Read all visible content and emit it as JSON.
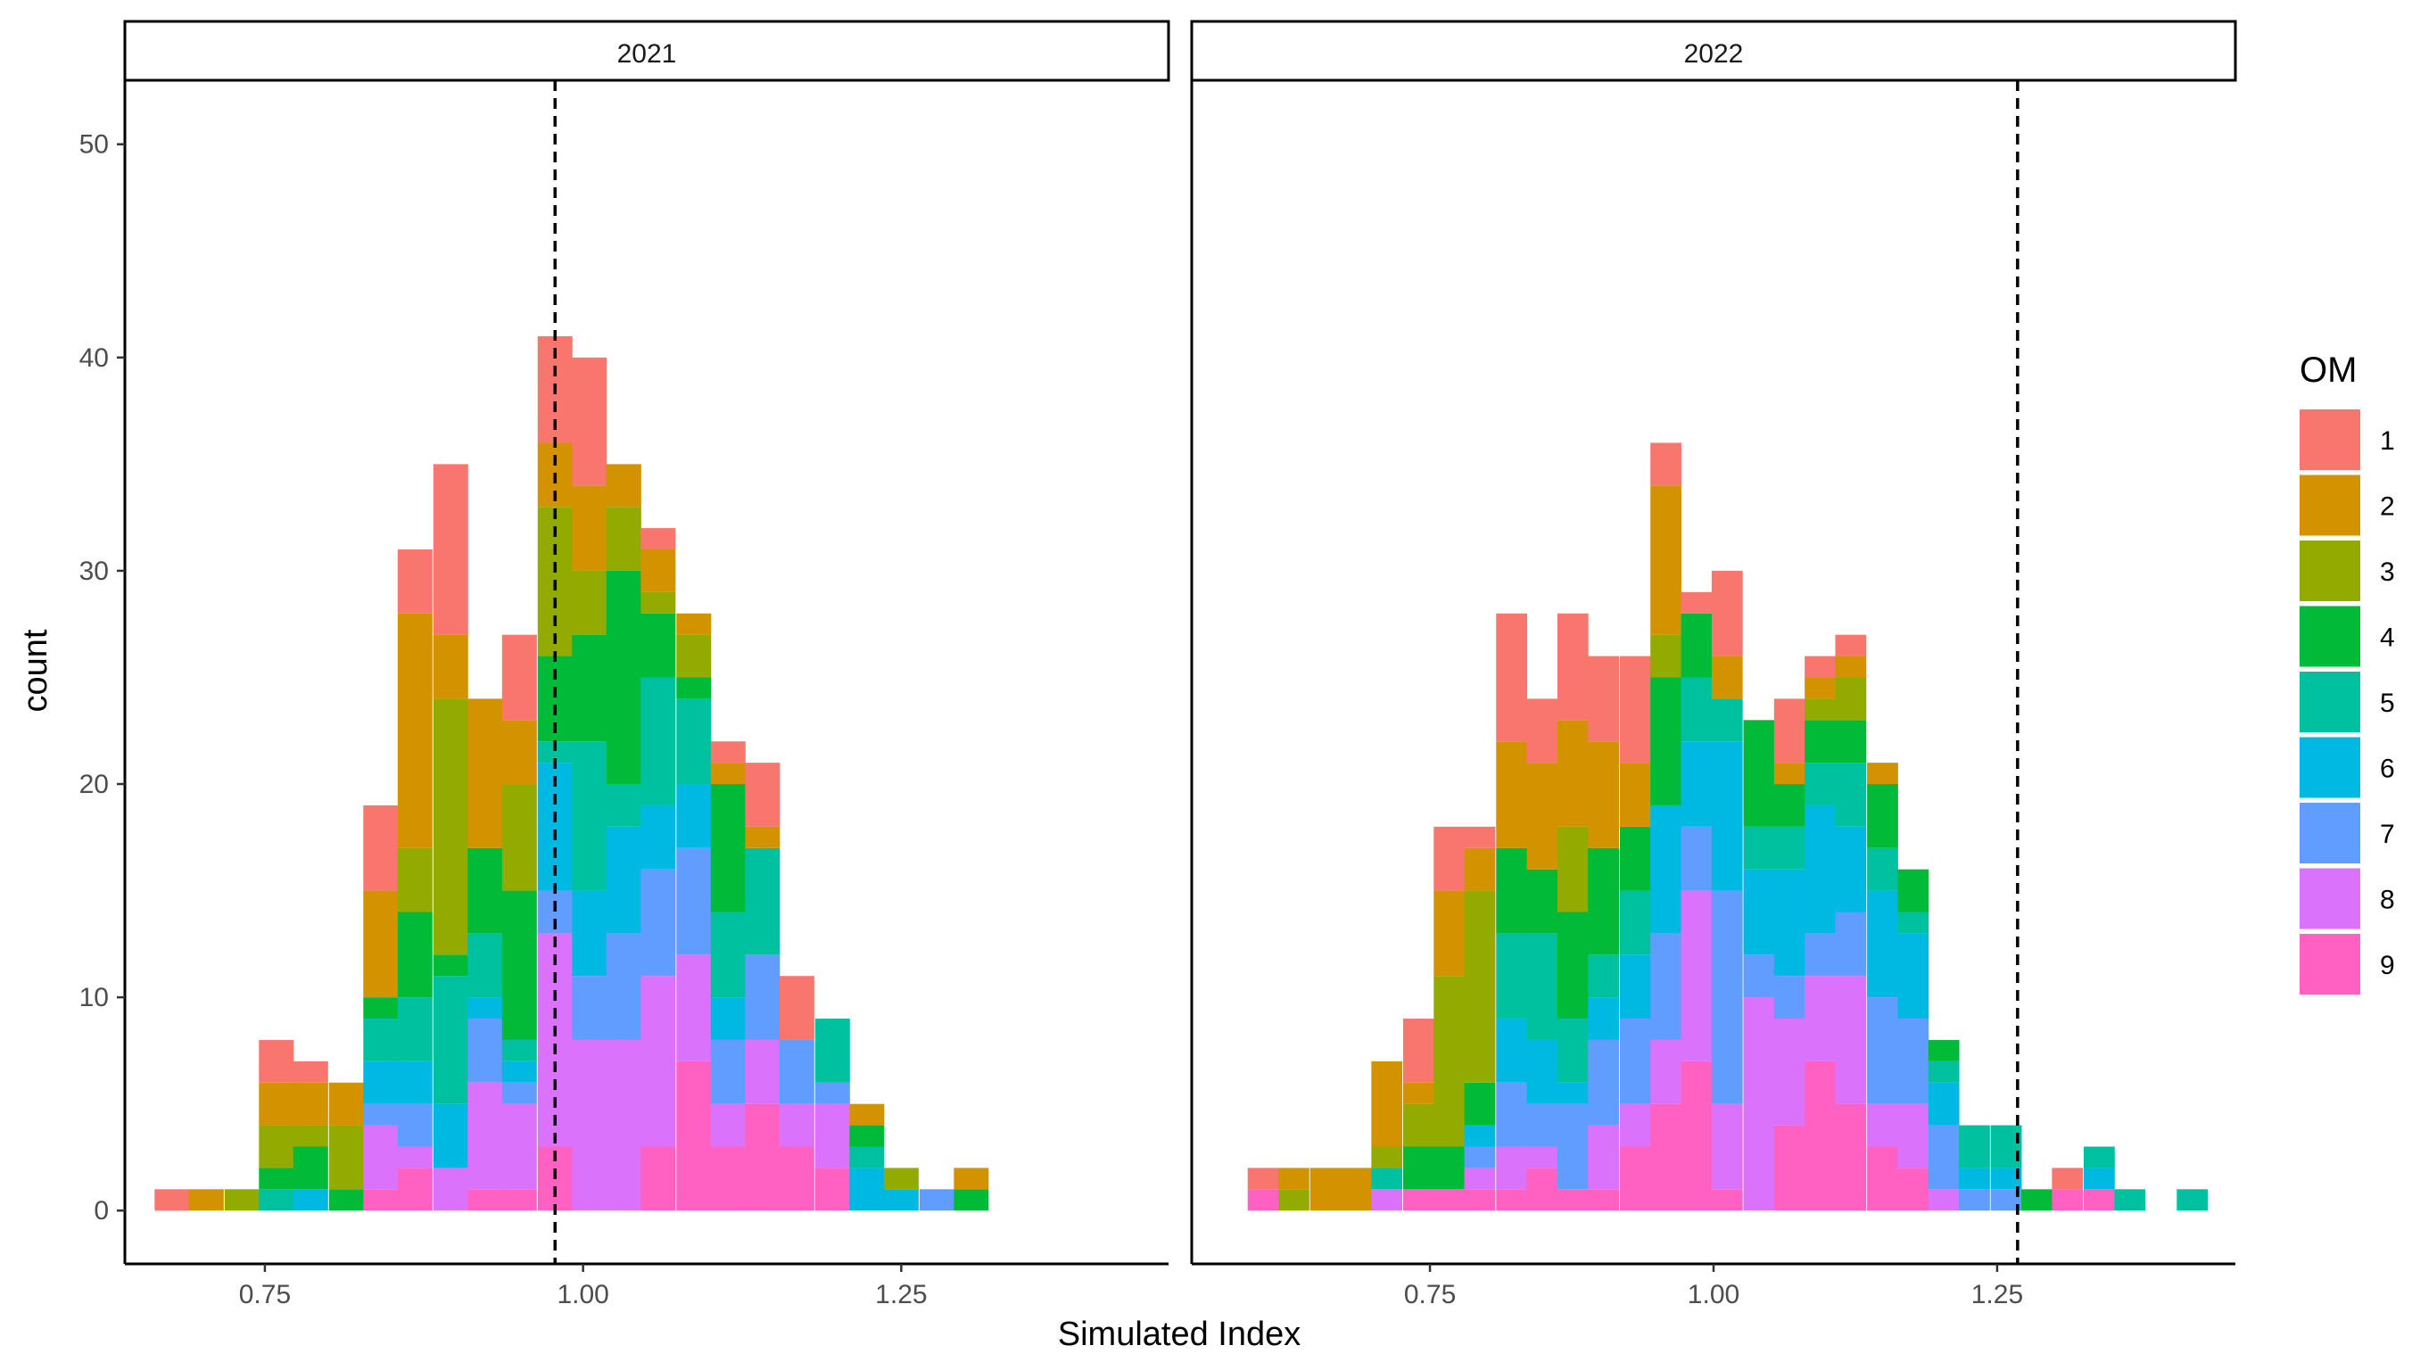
{
  "chart_data": {
    "type": "bar",
    "stacked": true,
    "xlabel": "Simulated Index",
    "ylabel": "count",
    "ylim": [
      0,
      53
    ],
    "y_ticks": [
      0,
      10,
      20,
      30,
      40,
      50
    ],
    "x_ticks": [
      "0.75",
      "1.00",
      "1.25"
    ],
    "x_tick_values": [
      0.75,
      1.0,
      1.25
    ],
    "bin_width": 0.02733,
    "legend": {
      "title": "OM",
      "position": "right",
      "labels": [
        "1",
        "2",
        "3",
        "4",
        "5",
        "6",
        "7",
        "8",
        "9"
      ],
      "colors": [
        "#F8766D",
        "#D39200",
        "#93AA00",
        "#00BA38",
        "#00C19F",
        "#00B9E3",
        "#619CFF",
        "#DB72FB",
        "#FF61C3"
      ]
    },
    "panels": [
      {
        "strip": "2021",
        "xlim": [
          0.64,
          1.46
        ],
        "ref_line": 0.978,
        "bins": [
          {
            "x": 0.677,
            "c": [
              1,
              0,
              0,
              0,
              0,
              0,
              0,
              0,
              0
            ]
          },
          {
            "x": 0.704,
            "c": [
              0,
              1,
              0,
              0,
              0,
              0,
              0,
              0,
              0
            ]
          },
          {
            "x": 0.732,
            "c": [
              0,
              0,
              1,
              0,
              0,
              0,
              0,
              0,
              0
            ]
          },
          {
            "x": 0.759,
            "c": [
              2,
              2,
              2,
              1,
              1,
              0,
              0,
              0,
              0
            ]
          },
          {
            "x": 0.786,
            "c": [
              1,
              2,
              1,
              2,
              0,
              1,
              0,
              0,
              0
            ]
          },
          {
            "x": 0.814,
            "c": [
              0,
              2,
              3,
              1,
              0,
              0,
              0,
              0,
              0
            ]
          },
          {
            "x": 0.841,
            "c": [
              4,
              5,
              0,
              1,
              2,
              2,
              1,
              3,
              1
            ]
          },
          {
            "x": 0.868,
            "c": [
              3,
              11,
              3,
              4,
              3,
              2,
              2,
              1,
              2
            ]
          },
          {
            "x": 0.896,
            "c": [
              8,
              3,
              12,
              1,
              6,
              3,
              0,
              2,
              0
            ]
          },
          {
            "x": 0.923,
            "c": [
              0,
              7,
              0,
              4,
              3,
              1,
              3,
              5,
              1
            ]
          },
          {
            "x": 0.95,
            "c": [
              4,
              3,
              5,
              7,
              1,
              1,
              1,
              4,
              1
            ]
          },
          {
            "x": 0.978,
            "c": [
              5,
              3,
              7,
              4,
              1,
              6,
              2,
              10,
              3
            ]
          },
          {
            "x": 1.005,
            "c": [
              6,
              4,
              3,
              5,
              7,
              4,
              3,
              8,
              0
            ]
          },
          {
            "x": 1.032,
            "c": [
              0,
              2,
              3,
              10,
              2,
              5,
              5,
              8,
              0
            ]
          },
          {
            "x": 1.059,
            "c": [
              1,
              2,
              1,
              3,
              6,
              3,
              5,
              8,
              3
            ]
          },
          {
            "x": 1.087,
            "c": [
              0,
              1,
              2,
              1,
              4,
              3,
              5,
              5,
              7
            ]
          },
          {
            "x": 1.114,
            "c": [
              1,
              1,
              0,
              6,
              4,
              2,
              3,
              2,
              3
            ]
          },
          {
            "x": 1.141,
            "c": [
              3,
              1,
              0,
              0,
              5,
              0,
              4,
              3,
              5
            ]
          },
          {
            "x": 1.168,
            "c": [
              3,
              0,
              0,
              0,
              0,
              0,
              3,
              2,
              3
            ]
          },
          {
            "x": 1.196,
            "c": [
              0,
              0,
              0,
              0,
              3,
              0,
              1,
              3,
              2
            ]
          },
          {
            "x": 1.223,
            "c": [
              0,
              1,
              0,
              1,
              1,
              2,
              0,
              0,
              0
            ]
          },
          {
            "x": 1.25,
            "c": [
              0,
              0,
              1,
              0,
              0,
              1,
              0,
              0,
              0
            ]
          },
          {
            "x": 1.278,
            "c": [
              0,
              0,
              0,
              0,
              0,
              0,
              1,
              0,
              0
            ]
          },
          {
            "x": 1.305,
            "c": [
              0,
              1,
              0,
              1,
              0,
              0,
              0,
              0,
              0
            ]
          }
        ]
      },
      {
        "strip": "2022",
        "xlim": [
          0.54,
          1.46
        ],
        "ref_line": 1.268,
        "bins": [
          {
            "x": 0.603,
            "c": [
              1,
              0,
              0,
              0,
              0,
              0,
              0,
              0,
              1
            ]
          },
          {
            "x": 0.63,
            "c": [
              0,
              1,
              1,
              0,
              0,
              0,
              0,
              0,
              0
            ]
          },
          {
            "x": 0.658,
            "c": [
              0,
              2,
              0,
              0,
              0,
              0,
              0,
              0,
              0
            ]
          },
          {
            "x": 0.685,
            "c": [
              0,
              2,
              0,
              0,
              0,
              0,
              0,
              0,
              0
            ]
          },
          {
            "x": 0.712,
            "c": [
              0,
              4,
              1,
              0,
              1,
              0,
              0,
              1,
              0
            ]
          },
          {
            "x": 0.74,
            "c": [
              3,
              1,
              2,
              2,
              0,
              0,
              0,
              0,
              1
            ]
          },
          {
            "x": 0.767,
            "c": [
              3,
              4,
              8,
              2,
              0,
              0,
              0,
              0,
              1
            ]
          },
          {
            "x": 0.794,
            "c": [
              1,
              2,
              9,
              2,
              0,
              1,
              1,
              1,
              1
            ]
          },
          {
            "x": 0.822,
            "c": [
              6,
              5,
              0,
              4,
              4,
              3,
              3,
              2,
              1
            ]
          },
          {
            "x": 0.849,
            "c": [
              3,
              5,
              0,
              3,
              5,
              3,
              2,
              1,
              2
            ]
          },
          {
            "x": 0.876,
            "c": [
              5,
              5,
              4,
              5,
              3,
              1,
              4,
              0,
              1
            ]
          },
          {
            "x": 0.903,
            "c": [
              4,
              5,
              0,
              5,
              2,
              2,
              4,
              3,
              1
            ]
          },
          {
            "x": 0.931,
            "c": [
              5,
              3,
              0,
              3,
              3,
              3,
              4,
              2,
              3
            ]
          },
          {
            "x": 0.958,
            "c": [
              2,
              7,
              2,
              6,
              0,
              6,
              5,
              3,
              5
            ]
          },
          {
            "x": 0.985,
            "c": [
              1,
              0,
              0,
              3,
              3,
              4,
              3,
              8,
              7
            ]
          },
          {
            "x": 1.012,
            "c": [
              4,
              2,
              0,
              0,
              2,
              7,
              10,
              4,
              1
            ]
          },
          {
            "x": 1.04,
            "c": [
              0,
              0,
              0,
              5,
              2,
              4,
              2,
              10,
              0
            ]
          },
          {
            "x": 1.067,
            "c": [
              3,
              1,
              0,
              2,
              2,
              5,
              2,
              5,
              4
            ]
          },
          {
            "x": 1.094,
            "c": [
              1,
              1,
              1,
              2,
              2,
              6,
              2,
              4,
              7
            ]
          },
          {
            "x": 1.121,
            "c": [
              1,
              1,
              2,
              2,
              3,
              4,
              3,
              6,
              5
            ]
          },
          {
            "x": 1.149,
            "c": [
              0,
              1,
              0,
              3,
              2,
              5,
              5,
              2,
              3
            ]
          },
          {
            "x": 1.176,
            "c": [
              0,
              0,
              0,
              2,
              1,
              4,
              4,
              3,
              2
            ]
          },
          {
            "x": 1.203,
            "c": [
              0,
              0,
              0,
              1,
              1,
              2,
              3,
              1,
              0
            ]
          },
          {
            "x": 1.23,
            "c": [
              0,
              0,
              0,
              0,
              2,
              1,
              1,
              0,
              0
            ]
          },
          {
            "x": 1.258,
            "c": [
              0,
              0,
              0,
              0,
              2,
              1,
              1,
              0,
              0
            ]
          },
          {
            "x": 1.285,
            "c": [
              0,
              0,
              0,
              1,
              0,
              0,
              0,
              0,
              0
            ]
          },
          {
            "x": 1.312,
            "c": [
              1,
              0,
              0,
              0,
              0,
              0,
              0,
              0,
              1
            ]
          },
          {
            "x": 1.34,
            "c": [
              0,
              0,
              0,
              0,
              1,
              1,
              0,
              0,
              1
            ]
          },
          {
            "x": 1.367,
            "c": [
              0,
              0,
              0,
              0,
              1,
              0,
              0,
              0,
              0
            ]
          },
          {
            "x": 1.422,
            "c": [
              0,
              0,
              0,
              0,
              1,
              0,
              0,
              0,
              0
            ]
          }
        ]
      }
    ]
  }
}
